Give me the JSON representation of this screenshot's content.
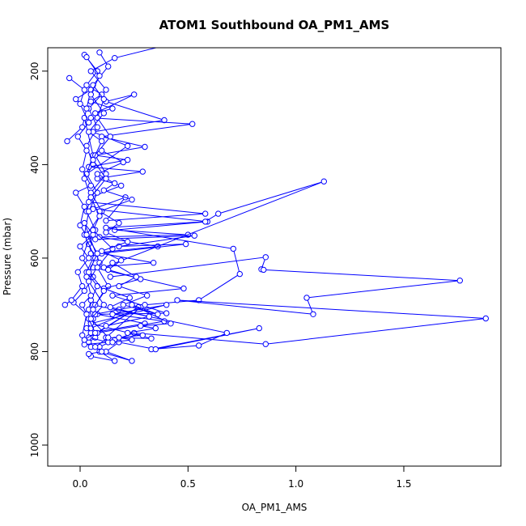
{
  "chart_data": {
    "type": "line",
    "title": "ATOM1 Southbound OA_PM1_AMS",
    "xlabel": "OA_PM1_AMS",
    "ylabel": "Pressure (mbar)",
    "xlim": [
      -0.15,
      1.95
    ],
    "ylim": [
      1045,
      150
    ],
    "y_reversed": true,
    "x_ticks": [
      0.0,
      0.5,
      1.0,
      1.5
    ],
    "x_tick_labels": [
      "0.0",
      "0.5",
      "1.0",
      "1.5"
    ],
    "y_ticks": [
      200,
      400,
      600,
      800,
      1000
    ],
    "y_tick_labels": [
      "200",
      "400",
      "600",
      "800",
      "1000"
    ],
    "grid": false,
    "legend": "none",
    "marker": "open-circle",
    "line_color": "#0000ff",
    "series": [
      {
        "x": [
          0.44,
          0.16,
          0.05,
          0.12,
          0.04,
          0.08,
          0.03,
          0.06,
          0.02,
          0.05,
          0.03,
          0.07,
          0.04,
          0.06,
          0.03,
          0.08,
          0.05,
          0.04,
          0.06,
          0.03,
          0.07,
          0.04,
          0.05
        ],
        "y": [
          140,
          172,
          200,
          240,
          280,
          320,
          360,
          400,
          430,
          470,
          500,
          540,
          570,
          600,
          630,
          660,
          690,
          710,
          730,
          750,
          770,
          780,
          790
        ]
      },
      {
        "x": [
          0.02,
          0.08,
          0.03,
          0.1,
          0.05,
          0.15,
          0.07,
          0.25,
          0.12,
          0.39,
          0.06,
          0.22,
          0.03
        ],
        "y": [
          165,
          200,
          230,
          250,
          265,
          280,
          290,
          250,
          265,
          305,
          330,
          360,
          420
        ]
      },
      {
        "x": [
          0.05,
          0.52,
          0.1,
          0.3,
          0.07,
          0.22,
          0.04,
          0.29,
          0.08,
          0.19,
          0.05
        ],
        "y": [
          300,
          313,
          340,
          362,
          380,
          390,
          405,
          415,
          430,
          445,
          470
        ]
      },
      {
        "x": [
          0.04,
          0.58,
          0.12,
          0.21,
          0.06,
          0.59,
          0.16,
          0.5,
          0.09,
          0.36,
          0.05
        ],
        "y": [
          480,
          505,
          520,
          470,
          495,
          522,
          540,
          550,
          555,
          575,
          590
        ]
      },
      {
        "x": [
          0.07,
          0.53,
          0.18,
          0.49,
          0.1,
          0.34,
          0.06,
          0.48,
          0.15,
          0.4,
          0.08,
          0.3,
          0.05
        ],
        "y": [
          560,
          552,
          575,
          570,
          590,
          610,
          620,
          665,
          680,
          718,
          720,
          740,
          760
        ]
      },
      {
        "x": [
          0.11,
          1.13,
          0.64,
          0.58,
          0.12,
          0.71,
          0.74,
          0.55,
          0.3,
          0.18,
          0.07
        ],
        "y": [
          620,
          436,
          505,
          522,
          535,
          580,
          634,
          690,
          700,
          710,
          720
        ]
      },
      {
        "x": [
          0.14,
          0.86,
          0.84,
          0.85,
          1.76,
          1.05,
          1.08,
          0.45,
          1.88,
          0.86,
          0.25,
          0.16,
          0.09
        ],
        "y": [
          640,
          598,
          624,
          625,
          648,
          685,
          720,
          690,
          729,
          784,
          760,
          775,
          790
        ]
      },
      {
        "x": [
          0.06,
          0.68,
          0.55,
          0.33,
          0.83,
          0.35,
          0.18,
          0.12,
          0.24,
          0.09,
          0.16,
          0.05
        ],
        "y": [
          700,
          760,
          787,
          795,
          750,
          795,
          780,
          800,
          820,
          800,
          820,
          810
        ]
      },
      {
        "x": [
          0.05,
          0.28,
          0.12,
          0.33,
          0.05,
          0.4,
          0.15,
          0.39,
          0.08,
          0.27,
          0.04,
          0.13,
          0.02
        ],
        "y": [
          750,
          705,
          770,
          772,
          740,
          700,
          720,
          735,
          760,
          705,
          770,
          780,
          785
        ]
      },
      {
        "x": [
          -0.06,
          0.01,
          0.03,
          -0.02,
          0.05,
          0.02,
          0.06,
          0.03,
          0.08,
          0.04,
          0.02,
          0.07,
          0.03,
          0.05,
          0.01,
          0.04,
          0.07,
          0.02
        ],
        "y": [
          350,
          320,
          280,
          260,
          240,
          300,
          380,
          420,
          460,
          500,
          550,
          600,
          640,
          680,
          700,
          730,
          760,
          775
        ]
      },
      {
        "x": [
          -0.05,
          0.02,
          0.0,
          0.04,
          -0.01,
          0.03,
          0.01,
          0.05,
          -0.02,
          0.02,
          0.0,
          0.04,
          0.01,
          0.06,
          0.02,
          -0.03,
          0.03,
          0.01
        ],
        "y": [
          215,
          240,
          270,
          310,
          340,
          370,
          410,
          445,
          460,
          490,
          530,
          560,
          600,
          640,
          670,
          695,
          720,
          765
        ]
      },
      {
        "x": [
          -0.07,
          -0.04,
          0.01,
          -0.01,
          0.04,
          0.0,
          0.06,
          0.02,
          0.09,
          0.04,
          0.11,
          0.05,
          0.13,
          0.07,
          0.1,
          0.04
        ],
        "y": [
          700,
          690,
          660,
          630,
          600,
          575,
          550,
          525,
          610,
          650,
          700,
          730,
          770,
          790,
          800,
          805
        ]
      },
      {
        "x": [
          0.09,
          0.13,
          0.06,
          0.11,
          0.08,
          0.14,
          0.07,
          0.12,
          0.05,
          0.1,
          0.06,
          0.15,
          0.08,
          0.13,
          0.07
        ],
        "y": [
          160,
          190,
          230,
          260,
          300,
          340,
          380,
          420,
          460,
          500,
          540,
          580,
          620,
          660,
          700
        ]
      },
      {
        "x": [
          0.1,
          0.2,
          0.08,
          0.16,
          0.11,
          0.24,
          0.09,
          0.18,
          0.12,
          0.22,
          0.1,
          0.19,
          0.13,
          0.28,
          0.11,
          0.23,
          0.14,
          0.32,
          0.12
        ],
        "y": [
          370,
          395,
          420,
          440,
          455,
          475,
          500,
          525,
          545,
          565,
          585,
          605,
          625,
          645,
          665,
          685,
          705,
          725,
          745
        ]
      },
      {
        "x": [
          0.03,
          0.09,
          0.05,
          0.11,
          0.04,
          0.1,
          0.06,
          0.12,
          0.05,
          0.09,
          0.03,
          0.08,
          0.04,
          0.11,
          0.06
        ],
        "y": [
          170,
          210,
          250,
          290,
          330,
          350,
          390,
          430,
          470,
          510,
          550,
          590,
          630,
          670,
          710
        ]
      },
      {
        "x": [
          0.15,
          0.26,
          0.18,
          0.31,
          0.2,
          0.36,
          0.24,
          0.42,
          0.28,
          0.35,
          0.22,
          0.29,
          0.18,
          0.24,
          0.15
        ],
        "y": [
          610,
          640,
          660,
          680,
          700,
          720,
          700,
          740,
          745,
          750,
          760,
          765,
          770,
          775,
          780
        ]
      }
    ]
  }
}
